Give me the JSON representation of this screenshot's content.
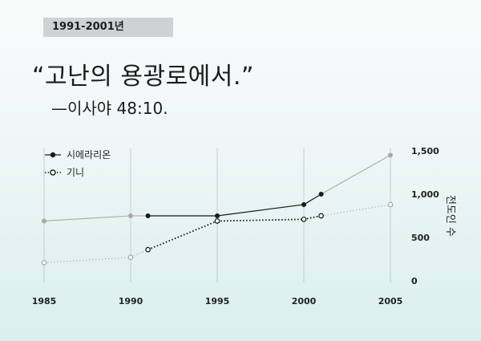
{
  "header": {
    "period": "1991-2001년",
    "quote": "“고난의 용광로에서.”",
    "attribution": "—이사야 48:10."
  },
  "chart_data": {
    "type": "line",
    "title": "“고난의 용광로에서.”",
    "ylabel": "전도인 수",
    "xlim": [
      1985,
      2005
    ],
    "ylim": [
      0,
      1500
    ],
    "x_ticks": [
      1985,
      1990,
      1995,
      2000,
      2005
    ],
    "y_ticks": [
      0,
      500,
      1000,
      1500
    ],
    "y_tick_labels": [
      "0",
      "500",
      "1,000",
      "1,500"
    ],
    "legend_position": "top-left",
    "colors": {
      "sierra_leone": "#1a1a1a",
      "guinea": "#1a1a1a",
      "context": "#a9a9a9"
    },
    "series": [
      {
        "name": "시에라리온",
        "style": "solid",
        "highlight_range": [
          1991,
          2001
        ],
        "points": [
          [
            1985,
            690
          ],
          [
            1990,
            750
          ],
          [
            1991,
            750
          ],
          [
            1995,
            750
          ],
          [
            2000,
            880
          ],
          [
            2001,
            1000
          ],
          [
            2005,
            1450
          ]
        ]
      },
      {
        "name": "기니",
        "style": "dotted",
        "highlight_range": [
          1991,
          2001
        ],
        "points": [
          [
            1985,
            210
          ],
          [
            1990,
            270
          ],
          [
            1991,
            360
          ],
          [
            1995,
            690
          ],
          [
            2000,
            710
          ],
          [
            2001,
            750
          ],
          [
            2005,
            880
          ]
        ]
      }
    ]
  }
}
